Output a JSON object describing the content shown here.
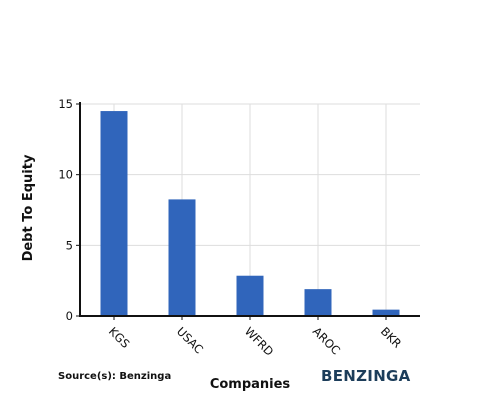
{
  "chart_data": {
    "type": "bar",
    "categories": [
      "KGS",
      "USAC",
      "WFRD",
      "AROC",
      "BKR"
    ],
    "values": [
      14.5,
      8.25,
      2.85,
      1.9,
      0.45
    ],
    "title": "",
    "xlabel": "Companies",
    "ylabel": "Debt To Equity",
    "ylim": [
      0,
      15
    ],
    "yticks": [
      0,
      5,
      10,
      15
    ],
    "grid": true,
    "bar_color": "#3065bb"
  },
  "footer": {
    "source": "Source(s): Benzinga",
    "brand": "BENZINGA",
    "brand_color": "#1c3d5a"
  }
}
